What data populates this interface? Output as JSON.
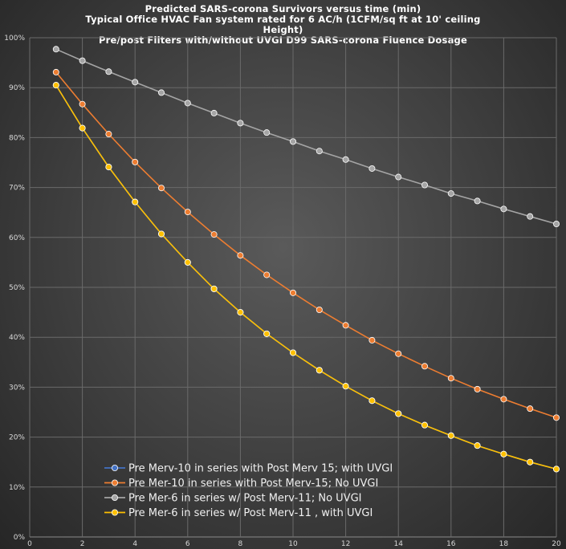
{
  "chart_data": {
    "type": "line",
    "title_lines": [
      "Predicted SARS-corona Survivors versus time (min)",
      "Typical Office HVAC Fan system rated for 6 AC/h (1CFM/sq ft at 10' ceiling",
      "Height)",
      "Pre/post Filters with/without UVGI D99 SARS-corona Fluence Dosage"
    ],
    "xlim": [
      0,
      20
    ],
    "ylim": [
      0,
      100
    ],
    "x_ticks": [
      0,
      2,
      4,
      6,
      8,
      10,
      12,
      14,
      16,
      18,
      20
    ],
    "y_ticks": [
      0,
      10,
      20,
      30,
      40,
      50,
      60,
      70,
      80,
      90,
      100
    ],
    "y_tick_labels": [
      "0%",
      "10%",
      "20%",
      "30%",
      "40%",
      "50%",
      "60%",
      "70%",
      "80%",
      "90%",
      "100%"
    ],
    "grid": true,
    "legend_position": "lower-left",
    "x": [
      1,
      2,
      3,
      4,
      5,
      6,
      7,
      8,
      9,
      10,
      11,
      12,
      13,
      14,
      15,
      16,
      17,
      18,
      19,
      20
    ],
    "series": [
      {
        "name": "Pre Merv-10 in series with Post Merv 15; with UVGI",
        "color": "#4472c4",
        "values": [
          90.5,
          81.9,
          74.1,
          67.1,
          60.7,
          55.0,
          49.7,
          45.0,
          40.7,
          36.9,
          33.4,
          30.2,
          27.3,
          24.7,
          22.4,
          20.3,
          18.3,
          16.6,
          15.0,
          13.6
        ]
      },
      {
        "name": "Pre Mer-10 in series with Post Merv-15; No UVGI",
        "color": "#ed7d31",
        "values": [
          93.1,
          86.7,
          80.7,
          75.1,
          69.9,
          65.1,
          60.6,
          56.4,
          52.5,
          48.9,
          45.5,
          42.4,
          39.4,
          36.7,
          34.2,
          31.8,
          29.6,
          27.6,
          25.7,
          23.9
        ]
      },
      {
        "name": "Pre Mer-6 in series w/ Post Merv-11;  No UVGI",
        "color": "#a5a5a5",
        "values": [
          97.7,
          95.4,
          93.2,
          91.1,
          89.0,
          86.9,
          84.9,
          82.9,
          81.0,
          79.2,
          77.3,
          75.6,
          73.8,
          72.1,
          70.5,
          68.8,
          67.3,
          65.7,
          64.2,
          62.7
        ]
      },
      {
        "name": "Pre Mer-6 in series w/ Post Merv-11 , with UVGI",
        "color": "#ffc000",
        "values": [
          90.5,
          81.9,
          74.1,
          67.1,
          60.7,
          55.0,
          49.7,
          45.0,
          40.7,
          36.9,
          33.4,
          30.2,
          27.3,
          24.7,
          22.4,
          20.3,
          18.3,
          16.6,
          15.0,
          13.6
        ]
      }
    ]
  }
}
